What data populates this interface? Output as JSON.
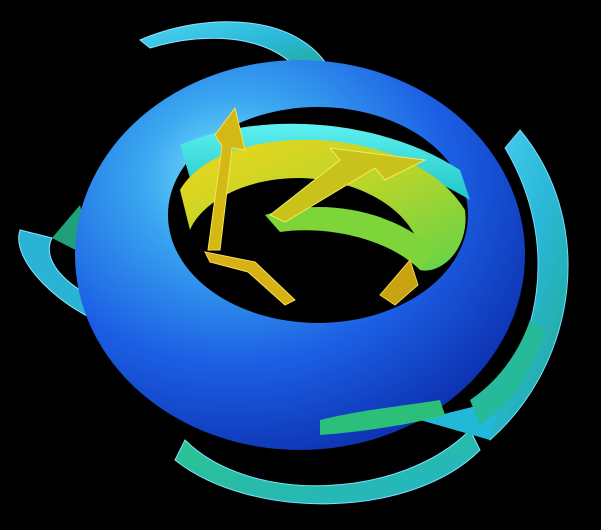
{
  "scene": {
    "background_color": "#000000",
    "colors": {
      "torus_highlight": "#5fd3f5",
      "torus_mid": "#1f63e8",
      "torus_dark": "#0a2fb5",
      "ribbon_cyan": "#35c3e6",
      "ribbon_teal": "#20b59a",
      "ribbon_green": "#27c96a",
      "ribbon_edge": "#6ad6ff",
      "inner_yellow": "#e9d419",
      "inner_gold": "#c79a0f",
      "inner_green": "#8fd93a"
    },
    "layers": [
      "outer-blue-torus",
      "inner-yellow-torus",
      "cyan-ribbon-arrows",
      "yellow-inner-arrows"
    ]
  }
}
